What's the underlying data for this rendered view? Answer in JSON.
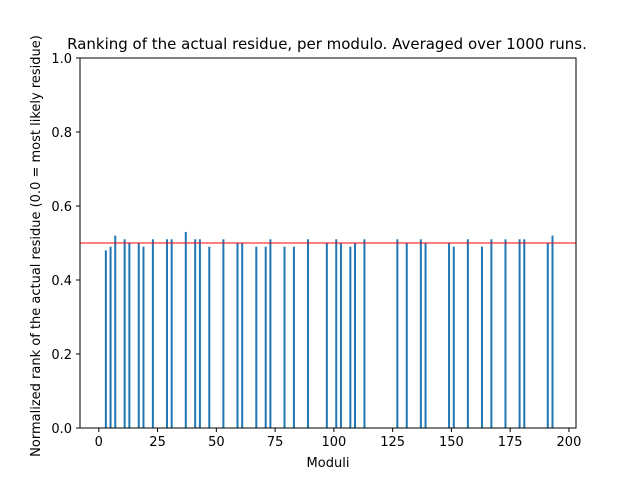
{
  "chart_data": {
    "type": "bar",
    "title": "Ranking of the actual residue, per modulo. Averaged over 1000 runs.",
    "xlabel": "Moduli",
    "ylabel": "Normalized rank of the actual residue (0.0 = most likely residue)",
    "xlim": [
      -8,
      203
    ],
    "ylim": [
      0,
      1.0
    ],
    "xticks": [
      0,
      25,
      50,
      75,
      100,
      125,
      150,
      175,
      200
    ],
    "yticks": [
      0.0,
      0.2,
      0.4,
      0.6,
      0.8,
      1.0
    ],
    "grid": false,
    "reference_line": {
      "y": 0.5,
      "color": "#ff0000"
    },
    "bar_color": "#1f77b4",
    "x": [
      3,
      5,
      7,
      11,
      13,
      17,
      19,
      23,
      29,
      31,
      37,
      41,
      43,
      47,
      53,
      59,
      61,
      67,
      71,
      73,
      79,
      83,
      89,
      97,
      101,
      103,
      107,
      109,
      113,
      127,
      131,
      137,
      139,
      149,
      151,
      157,
      163,
      167,
      173,
      179,
      181,
      191,
      193
    ],
    "values": [
      0.48,
      0.49,
      0.52,
      0.51,
      0.5,
      0.5,
      0.49,
      0.51,
      0.51,
      0.51,
      0.53,
      0.51,
      0.51,
      0.49,
      0.51,
      0.5,
      0.5,
      0.49,
      0.49,
      0.51,
      0.49,
      0.49,
      0.51,
      0.5,
      0.51,
      0.5,
      0.49,
      0.5,
      0.51,
      0.51,
      0.5,
      0.51,
      0.5,
      0.5,
      0.49,
      0.51,
      0.49,
      0.51,
      0.51,
      0.51,
      0.51,
      0.5,
      0.52
    ]
  }
}
